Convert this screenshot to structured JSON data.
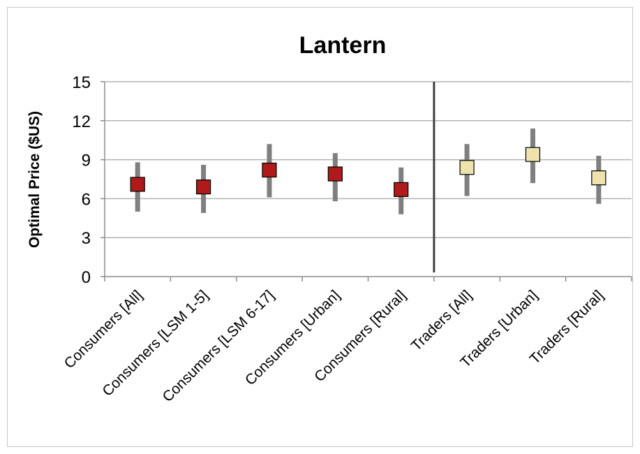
{
  "chart_data": {
    "type": "scatter",
    "title": "Lantern",
    "xlabel": "",
    "ylabel": "Optimal Price  ($US)",
    "ylim": [
      0,
      15
    ],
    "yticks": [
      0,
      3,
      6,
      9,
      12,
      15
    ],
    "grid": true,
    "categories": [
      "Consumers [All]",
      "Consumers [LSM 1-5]",
      "Consumers [LSM 6-17]",
      "Consumers [Urban]",
      "Consumers [Rural]",
      "Traders [All]",
      "Traders [Urban]",
      "Traders [Rural]"
    ],
    "values": [
      7.1,
      6.9,
      8.2,
      7.9,
      6.7,
      8.4,
      9.4,
      7.6
    ],
    "error_low": [
      5.0,
      4.9,
      6.1,
      5.8,
      4.8,
      6.2,
      7.2,
      5.6
    ],
    "error_high": [
      8.8,
      8.6,
      10.2,
      9.5,
      8.4,
      10.2,
      11.4,
      9.3
    ],
    "marker_colors": [
      "#b01a1a",
      "#b01a1a",
      "#b01a1a",
      "#b01a1a",
      "#b01a1a",
      "#efe3ad",
      "#efe3ad",
      "#efe3ad"
    ],
    "errorbar_color": "#7f7f7f",
    "divider_after_category": 5,
    "divider_color": "#404040",
    "gridline_color": "#b3b3b3"
  }
}
